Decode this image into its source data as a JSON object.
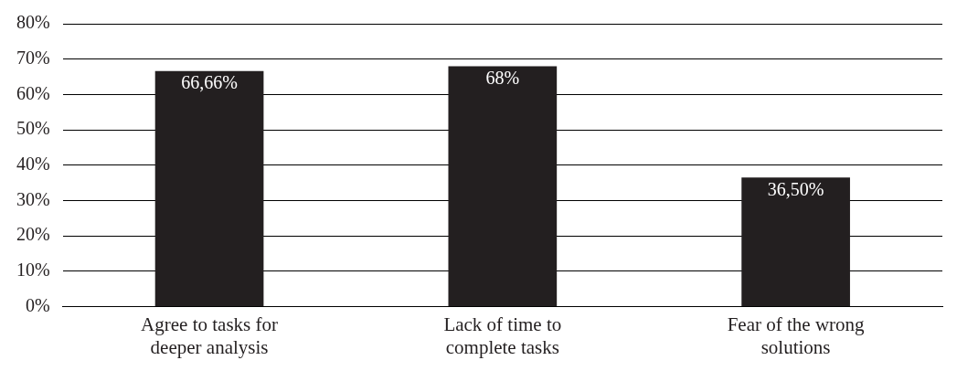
{
  "chart_data": {
    "type": "bar",
    "categories": [
      "Agree to tasks for deeper analysis",
      "Lack of time to complete tasks",
      "Fear of the wrong solutions"
    ],
    "values": [
      66.66,
      68,
      36.5
    ],
    "value_labels": [
      "66,66%",
      "68%",
      "36,50%"
    ],
    "color": "#231f20",
    "ylim": [
      0,
      80
    ],
    "yticks": [
      {
        "value": 0,
        "label": "0%"
      },
      {
        "value": 10,
        "label": "10%"
      },
      {
        "value": 20,
        "label": "20%"
      },
      {
        "value": 30,
        "label": "30%"
      },
      {
        "value": 40,
        "label": "40%"
      },
      {
        "value": 50,
        "label": "50%"
      },
      {
        "value": 60,
        "label": "60%"
      },
      {
        "value": 70,
        "label": "70%"
      },
      {
        "value": 80,
        "label": "80%"
      }
    ],
    "grid": "y",
    "legend": false
  }
}
